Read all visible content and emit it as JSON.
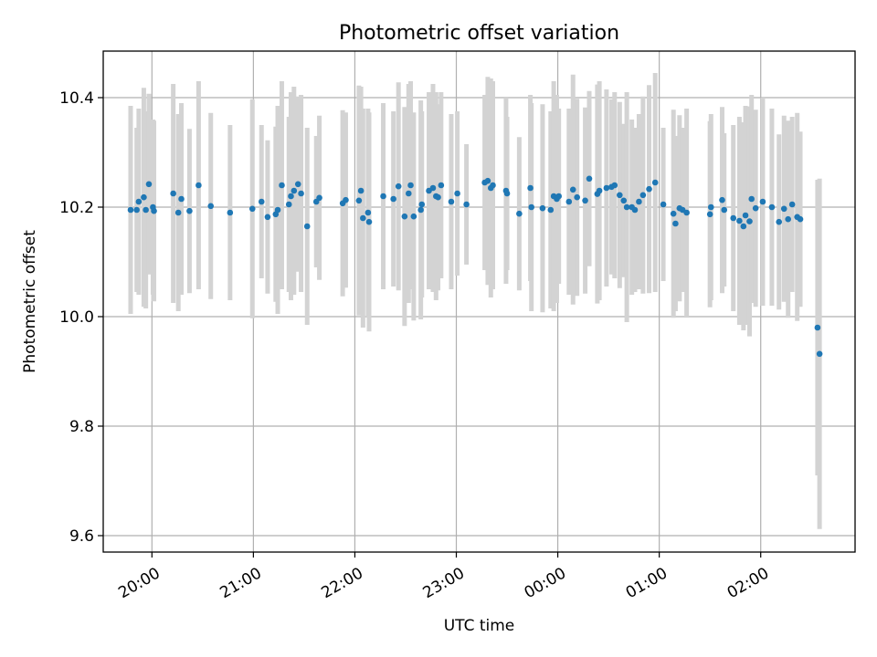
{
  "chart_data": {
    "type": "scatter",
    "title": "Photometric offset variation",
    "xlabel": "UTC time",
    "ylabel": "Photometric offset",
    "x_unit": "UTC hour (continuous, values >= 24 are after midnight)",
    "xlim": [
      19.52,
      26.93
    ],
    "ylim": [
      9.57,
      10.485
    ],
    "xticks": [
      {
        "value": 20,
        "label": "20:00"
      },
      {
        "value": 21,
        "label": "21:00"
      },
      {
        "value": 22,
        "label": "22:00"
      },
      {
        "value": 23,
        "label": "23:00"
      },
      {
        "value": 24,
        "label": "00:00"
      },
      {
        "value": 25,
        "label": "01:00"
      },
      {
        "value": 26,
        "label": "02:00"
      }
    ],
    "yticks": [
      {
        "value": 9.6,
        "label": "9.6"
      },
      {
        "value": 9.8,
        "label": "9.8"
      },
      {
        "value": 10.0,
        "label": "10.0"
      },
      {
        "value": 10.2,
        "label": "10.2"
      },
      {
        "value": 10.4,
        "label": "10.4"
      }
    ],
    "grid": true,
    "marker_color": "#1f77b4",
    "errorbar_color": "#d3d3d3",
    "points": [
      [
        19.79,
        10.195,
        0.19
      ],
      [
        19.85,
        10.195,
        0.15
      ],
      [
        19.87,
        10.21,
        0.17
      ],
      [
        19.92,
        10.218,
        0.2
      ],
      [
        19.94,
        10.195,
        0.18
      ],
      [
        19.97,
        10.242,
        0.165
      ],
      [
        20.01,
        10.2,
        0.16
      ],
      [
        20.02,
        10.193,
        0.165
      ],
      [
        20.21,
        10.225,
        0.2
      ],
      [
        20.26,
        10.19,
        0.18
      ],
      [
        20.29,
        10.215,
        0.175
      ],
      [
        20.37,
        10.193,
        0.15
      ],
      [
        20.46,
        10.24,
        0.19
      ],
      [
        20.58,
        10.202,
        0.17
      ],
      [
        20.77,
        10.19,
        0.16
      ],
      [
        20.99,
        10.197,
        0.2
      ],
      [
        21.08,
        10.21,
        0.14
      ],
      [
        21.14,
        10.182,
        0.14
      ],
      [
        21.22,
        10.187,
        0.16
      ],
      [
        21.24,
        10.195,
        0.19
      ],
      [
        21.28,
        10.24,
        0.19
      ],
      [
        21.35,
        10.205,
        0.16
      ],
      [
        21.37,
        10.22,
        0.19
      ],
      [
        21.4,
        10.23,
        0.19
      ],
      [
        21.44,
        10.242,
        0.16
      ],
      [
        21.47,
        10.225,
        0.18
      ],
      [
        21.53,
        10.165,
        0.18
      ],
      [
        21.62,
        10.21,
        0.12
      ],
      [
        21.65,
        10.217,
        0.15
      ],
      [
        21.88,
        10.207,
        0.17
      ],
      [
        21.91,
        10.213,
        0.16
      ],
      [
        22.04,
        10.212,
        0.21
      ],
      [
        22.06,
        10.23,
        0.19
      ],
      [
        22.08,
        10.18,
        0.2
      ],
      [
        22.13,
        10.19,
        0.19
      ],
      [
        22.14,
        10.173,
        0.2
      ],
      [
        22.28,
        10.22,
        0.17
      ],
      [
        22.38,
        10.215,
        0.16
      ],
      [
        22.43,
        10.238,
        0.19
      ],
      [
        22.49,
        10.183,
        0.2
      ],
      [
        22.53,
        10.225,
        0.2
      ],
      [
        22.55,
        10.24,
        0.19
      ],
      [
        22.58,
        10.183,
        0.19
      ],
      [
        22.65,
        10.195,
        0.2
      ],
      [
        22.66,
        10.205,
        0.17
      ],
      [
        22.73,
        10.23,
        0.18
      ],
      [
        22.77,
        10.235,
        0.19
      ],
      [
        22.8,
        10.22,
        0.19
      ],
      [
        22.82,
        10.218,
        0.17
      ],
      [
        22.85,
        10.24,
        0.17
      ],
      [
        22.95,
        10.21,
        0.16
      ],
      [
        23.01,
        10.225,
        0.15
      ],
      [
        23.1,
        10.205,
        0.11
      ],
      [
        23.28,
        10.245,
        0.16
      ],
      [
        23.31,
        10.248,
        0.19
      ],
      [
        23.34,
        10.235,
        0.2
      ],
      [
        23.36,
        10.24,
        0.19
      ],
      [
        23.49,
        10.23,
        0.17
      ],
      [
        23.5,
        10.225,
        0.14
      ],
      [
        23.62,
        10.188,
        0.14
      ],
      [
        23.73,
        10.235,
        0.17
      ],
      [
        23.74,
        10.2,
        0.19
      ],
      [
        23.85,
        10.198,
        0.19
      ],
      [
        23.93,
        10.195,
        0.18
      ],
      [
        23.96,
        10.22,
        0.21
      ],
      [
        23.99,
        10.215,
        0.19
      ],
      [
        24.01,
        10.22,
        0.16
      ],
      [
        24.11,
        10.21,
        0.17
      ],
      [
        24.15,
        10.232,
        0.21
      ],
      [
        24.19,
        10.218,
        0.18
      ],
      [
        24.27,
        10.212,
        0.17
      ],
      [
        24.31,
        10.252,
        0.16
      ],
      [
        24.39,
        10.224,
        0.2
      ],
      [
        24.41,
        10.23,
        0.2
      ],
      [
        24.48,
        10.235,
        0.18
      ],
      [
        24.53,
        10.237,
        0.16
      ],
      [
        24.56,
        10.24,
        0.17
      ],
      [
        24.61,
        10.222,
        0.17
      ],
      [
        24.65,
        10.212,
        0.14
      ],
      [
        24.68,
        10.2,
        0.21
      ],
      [
        24.73,
        10.2,
        0.16
      ],
      [
        24.76,
        10.195,
        0.15
      ],
      [
        24.8,
        10.21,
        0.16
      ],
      [
        24.84,
        10.222,
        0.18
      ],
      [
        24.9,
        10.233,
        0.19
      ],
      [
        24.96,
        10.245,
        0.2
      ],
      [
        25.04,
        10.205,
        0.14
      ],
      [
        25.14,
        10.188,
        0.19
      ],
      [
        25.16,
        10.17,
        0.16
      ],
      [
        25.2,
        10.198,
        0.17
      ],
      [
        25.23,
        10.195,
        0.15
      ],
      [
        25.27,
        10.19,
        0.19
      ],
      [
        25.5,
        10.187,
        0.17
      ],
      [
        25.51,
        10.2,
        0.17
      ],
      [
        25.62,
        10.213,
        0.17
      ],
      [
        25.64,
        10.195,
        0.14
      ],
      [
        25.73,
        10.18,
        0.17
      ],
      [
        25.79,
        10.175,
        0.19
      ],
      [
        25.83,
        10.165,
        0.19
      ],
      [
        25.85,
        10.185,
        0.2
      ],
      [
        25.89,
        10.174,
        0.21
      ],
      [
        25.91,
        10.215,
        0.19
      ],
      [
        25.95,
        10.198,
        0.18
      ],
      [
        26.02,
        10.21,
        0.19
      ],
      [
        26.11,
        10.2,
        0.18
      ],
      [
        26.18,
        10.173,
        0.16
      ],
      [
        26.23,
        10.197,
        0.17
      ],
      [
        26.27,
        10.178,
        0.18
      ],
      [
        26.31,
        10.205,
        0.16
      ],
      [
        26.36,
        10.182,
        0.19
      ],
      [
        26.39,
        10.178,
        0.16
      ],
      [
        26.56,
        9.98,
        0.27
      ],
      [
        26.58,
        9.932,
        0.32
      ]
    ]
  }
}
